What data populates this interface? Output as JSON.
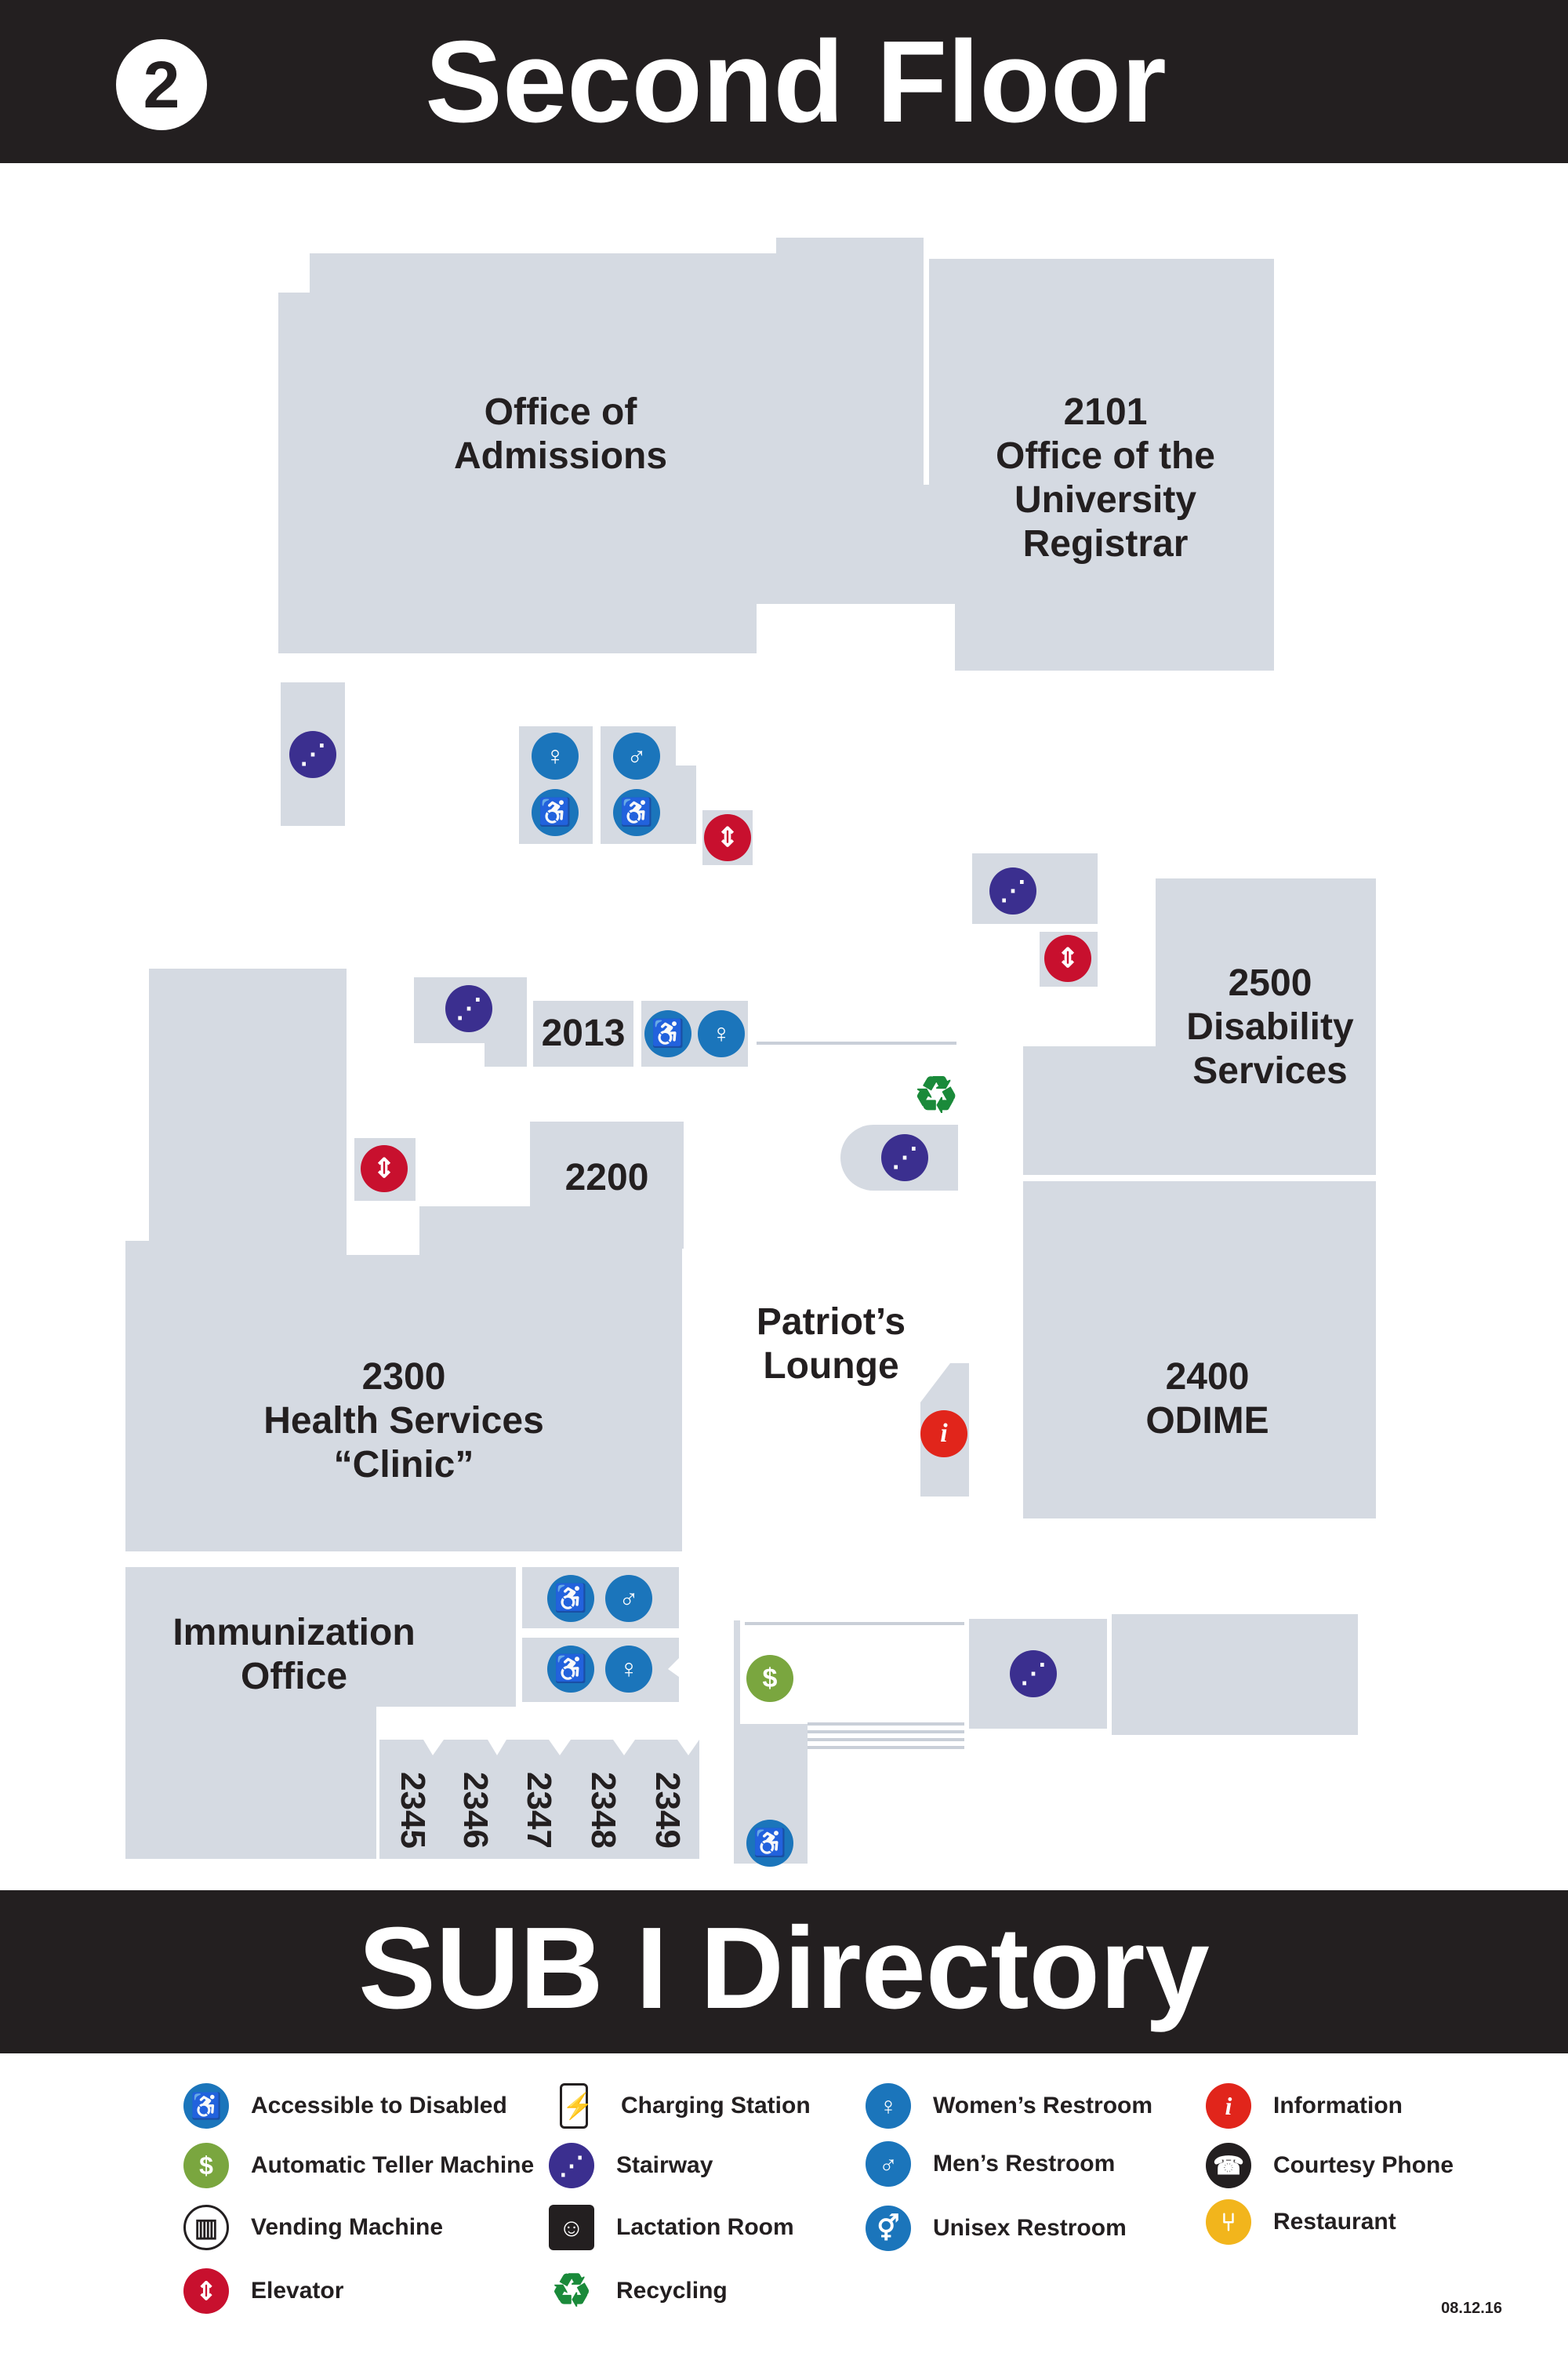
{
  "header": {
    "floor_number": "2",
    "title": "Second Floor"
  },
  "rooms": {
    "admissions": "Office of\nAdmissions",
    "registrar": "2101\nOffice of the\nUniversity\nRegistrar",
    "disability": "2500\nDisability\nServices",
    "r2013": "2013",
    "r2200": "2200",
    "lounge": "Patriot’s\nLounge",
    "health": "2300\nHealth Services\n“Clinic”",
    "odime": "2400\nODIME",
    "immunization": "Immunization\nOffice",
    "r2345": "2345",
    "r2346": "2346",
    "r2347": "2347",
    "r2348": "2348",
    "r2349": "2349"
  },
  "footer": {
    "title": "SUB I Directory"
  },
  "legend": [
    {
      "label": "Accessible to Disabled",
      "icon": "accessible-icon"
    },
    {
      "label": "Automatic Teller Machine",
      "icon": "atm-icon"
    },
    {
      "label": "Vending Machine",
      "icon": "vending-icon"
    },
    {
      "label": "Elevator",
      "icon": "elevator-icon"
    },
    {
      "label": "Charging Station",
      "icon": "charging-icon"
    },
    {
      "label": "Stairway",
      "icon": "stairway-icon"
    },
    {
      "label": "Lactation Room",
      "icon": "lactation-icon"
    },
    {
      "label": "Recycling",
      "icon": "recycling-icon"
    },
    {
      "label": "Women’s Restroom",
      "icon": "womens-restroom-icon"
    },
    {
      "label": "Men’s Restroom",
      "icon": "mens-restroom-icon"
    },
    {
      "label": "Unisex Restroom",
      "icon": "unisex-restroom-icon"
    },
    {
      "label": "Information",
      "icon": "information-icon"
    },
    {
      "label": "Courtesy Phone",
      "icon": "phone-icon"
    },
    {
      "label": "Restaurant",
      "icon": "restaurant-icon"
    }
  ],
  "colors": {
    "bar": "#231f20",
    "room": "#d5dae2",
    "accessible": "#1b75bb",
    "stair": "#3b2f8f",
    "elevator": "#c8102e",
    "atm": "#7aa63f",
    "info": "#e1251b",
    "recycle": "#1a8a3a",
    "restaurant": "#f2b51c"
  },
  "date_stamp": "08.12.16"
}
